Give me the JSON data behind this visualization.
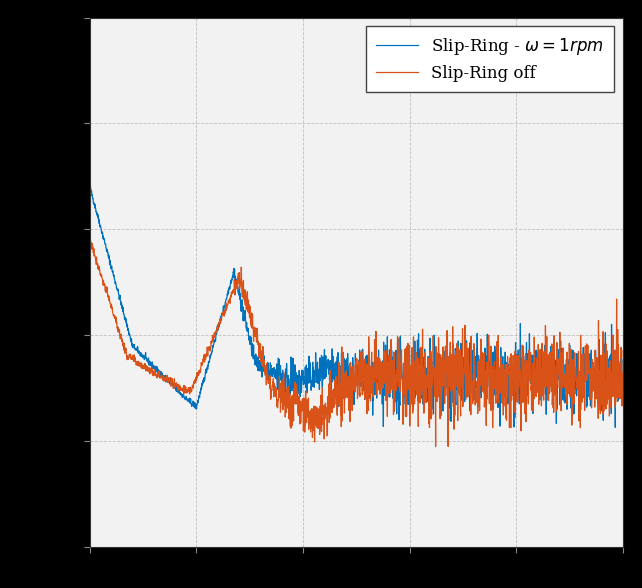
{
  "line1_color": "#0072BD",
  "line2_color": "#D95319",
  "line1_label": "Slip-Ring - $\\omega = 1rpm$",
  "line2_label": "Slip-Ring off",
  "background_color": "#000000",
  "axes_facecolor": "#f2f2f2",
  "grid_color": "#bbbbbb",
  "legend_edge_color": "#444444",
  "legend_bg_color": "#ffffff",
  "figsize": [
    6.42,
    5.88
  ],
  "dpi": 100,
  "ylim": [
    0.0,
    1.0
  ],
  "xlim": [
    0.0,
    1.0
  ]
}
